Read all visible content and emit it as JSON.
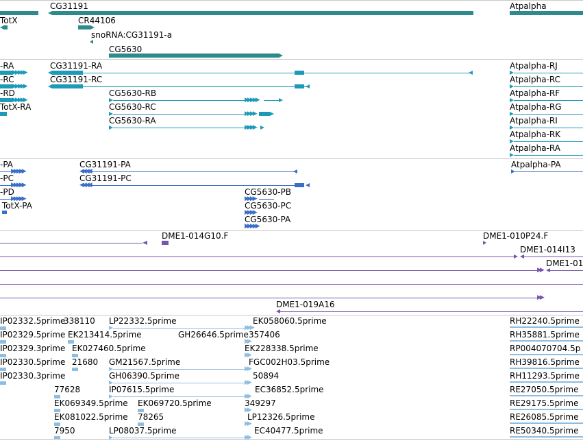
{
  "tracks": {
    "genes": {
      "labels": [
        "CG31191",
        "Atpalpha",
        "TotX",
        "CR44106",
        "snoRNA:CG31191-a",
        "CG5630"
      ]
    },
    "transcripts": {
      "labels": [
        "-RA",
        "CG31191-RA",
        "Atpalpha-RJ",
        "-RC",
        "CG31191-RC",
        "Atpalpha-RC",
        "-RD",
        "CG5630-RB",
        "Atpalpha-RF",
        "TotX-RA",
        "CG5630-RC",
        "Atpalpha-RG",
        "CG5630-RA",
        "Atpalpha-RI",
        "Atpalpha-RK",
        "Atpalpha-RA"
      ]
    },
    "proteins": {
      "labels": [
        "-PA",
        "CG31191-PA",
        "Atpalpha-PA",
        "-PC",
        "CG31191-PC",
        "-PD",
        "CG5630-PB",
        "TotX-PA",
        "CG5630-PC",
        "CG5630-PA"
      ]
    },
    "clones": {
      "labels": [
        "DME1-014G10.F",
        "DME1-010P24.F",
        "DME1-014I13",
        "DME1-01",
        "DME1-019A16"
      ]
    },
    "ests": {
      "labels": [
        "IP02332.5prime",
        "338110",
        "LP22332.5prime",
        "EK058060.5prime",
        "RH22240.5prime",
        "IP02329.5prime",
        "EK213414.5prime",
        "GH26646.5prime",
        "357406",
        "RH35881.5prime",
        "IP02329.3prime",
        "EK027460.5prime",
        "EK228338.5prime",
        "RP004070704.5p",
        "IP02330.5prime",
        "21680",
        "GM21567.5prime",
        "FGC002H03.5prime",
        "RH39816.5prime",
        "IP02330.3prime",
        "GH06390.5prime",
        "50894",
        "RH11293.5prime",
        "77628",
        "IP07615.5prime",
        "EC36852.5prime",
        "RE27050.5prime",
        "EK069349.5prime",
        "EK069720.5prime",
        "349297",
        "RE29175.5prime",
        "EK081022.5prime",
        "78265",
        "LP12326.5prime",
        "RE26085.5prime",
        "7950",
        "LP08037.5prime",
        "EC40477.5prime",
        "RE50340.5prime"
      ]
    }
  },
  "colors": {
    "gene": "#2e8b8b",
    "transcript": "#1e9ab8",
    "protein": "#3a6fc8",
    "clone": "#7755aa",
    "est": "#8fbde0"
  }
}
